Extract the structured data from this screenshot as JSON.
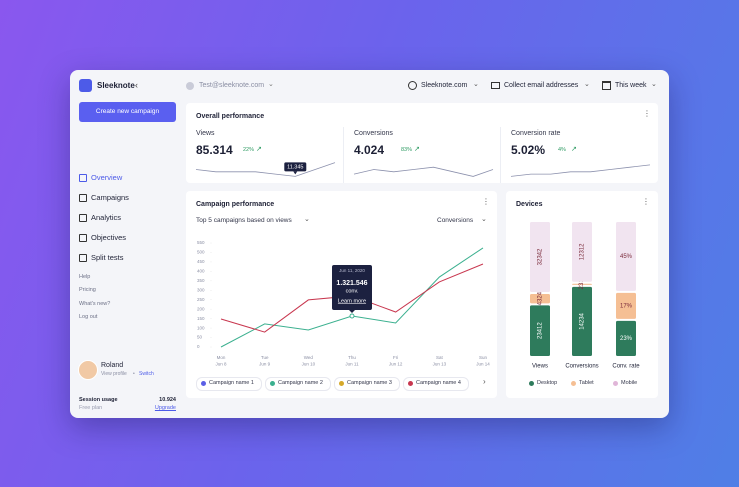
{
  "sidebar": {
    "brand": "Sleeknote",
    "button": "Create new campaign",
    "nav": [
      "Overview",
      "Campaigns",
      "Analytics",
      "Objectives",
      "Split tests"
    ],
    "links": [
      "Help",
      "Pricing",
      "What's new?",
      "Log out"
    ],
    "user": {
      "name": "Roland",
      "profile": "View profile",
      "separator": "•",
      "switch": "Switch"
    },
    "usage": {
      "label": "Session usage",
      "value": "10.924",
      "plan": "Free plan",
      "upgrade": "Upgrade"
    }
  },
  "topbar": {
    "account": "Test@sleeknote.com",
    "site": "Sleeknote.com",
    "goal": "Collect email addresses",
    "period": "This week"
  },
  "overall": {
    "title": "Overall performance",
    "metrics": [
      {
        "label": "Views",
        "value": "85.314",
        "change": "22%",
        "sparkline": [
          5,
          4,
          4,
          4,
          3,
          2,
          5,
          8
        ]
      },
      {
        "label": "Conversions",
        "value": "4.024",
        "change": "83%",
        "sparkline": [
          3,
          5,
          4,
          5,
          6,
          4,
          2,
          5
        ]
      },
      {
        "label": "Conversion rate",
        "value": "5.02%",
        "change": "4%",
        "sparkline": [
          2,
          3,
          3,
          4,
          4,
          5,
          6,
          7
        ]
      }
    ],
    "tooltip": "11.345"
  },
  "campaign": {
    "title": "Campaign performance",
    "filter": "Top 5 campaigns based on views",
    "metric": "Conversions",
    "chart_data": {
      "type": "line",
      "categories": [
        {
          "day": "Mon",
          "date": "Jun 8"
        },
        {
          "day": "Tue",
          "date": "Jun 9"
        },
        {
          "day": "Wed",
          "date": "Jun 10"
        },
        {
          "day": "Thu",
          "date": "Jun 11"
        },
        {
          "day": "Fri",
          "date": "Jun 12"
        },
        {
          "day": "Sat",
          "date": "Jun 13"
        },
        {
          "day": "Sun",
          "date": "Jun 14"
        }
      ],
      "ylim": [
        0,
        550
      ],
      "yticks": [
        0,
        50,
        100,
        150,
        200,
        250,
        300,
        350,
        400,
        450,
        500,
        550
      ],
      "series": [
        {
          "name": "Campaign name 1",
          "color": "#5b5fe6",
          "values": [
            null,
            null,
            null,
            null,
            null,
            null,
            null
          ]
        },
        {
          "name": "Campaign name 2",
          "color": "#3bb08f",
          "values": [
            0,
            122,
            90,
            164,
            127,
            370,
            524
          ]
        },
        {
          "name": "Campaign name 3",
          "color": "#d6a92a",
          "values": [
            null,
            null,
            null,
            null,
            null,
            null,
            null
          ]
        },
        {
          "name": "Campaign name 4",
          "color": "#c8374f",
          "values": [
            148,
            79,
            249,
            270,
            185,
            344,
            439
          ]
        }
      ],
      "tooltip": {
        "date": "Jun 11, 2020",
        "value": "1.321.546",
        "unit": "conv.",
        "link": "Learn more"
      }
    }
  },
  "devices": {
    "title": "Devices",
    "chart_data": {
      "type": "bar",
      "stacked": true,
      "categories": [
        "Views",
        "Conversions",
        "Conv. rate"
      ],
      "series": [
        {
          "name": "Desktop",
          "color": "#2e7b5c",
          "values": [
            23412,
            14234,
            23
          ],
          "value_labels": [
            "23412",
            "14234",
            "23%"
          ]
        },
        {
          "name": "Tablet",
          "color": "#f5bf94",
          "values": [
            4324,
            231,
            17
          ],
          "value_labels": [
            "4324",
            "231",
            "17%"
          ]
        },
        {
          "name": "Mobile",
          "color": "#f1e4f0",
          "values": [
            32342,
            12312,
            45
          ],
          "value_labels": [
            "32342",
            "12312",
            "45%"
          ]
        }
      ]
    }
  }
}
